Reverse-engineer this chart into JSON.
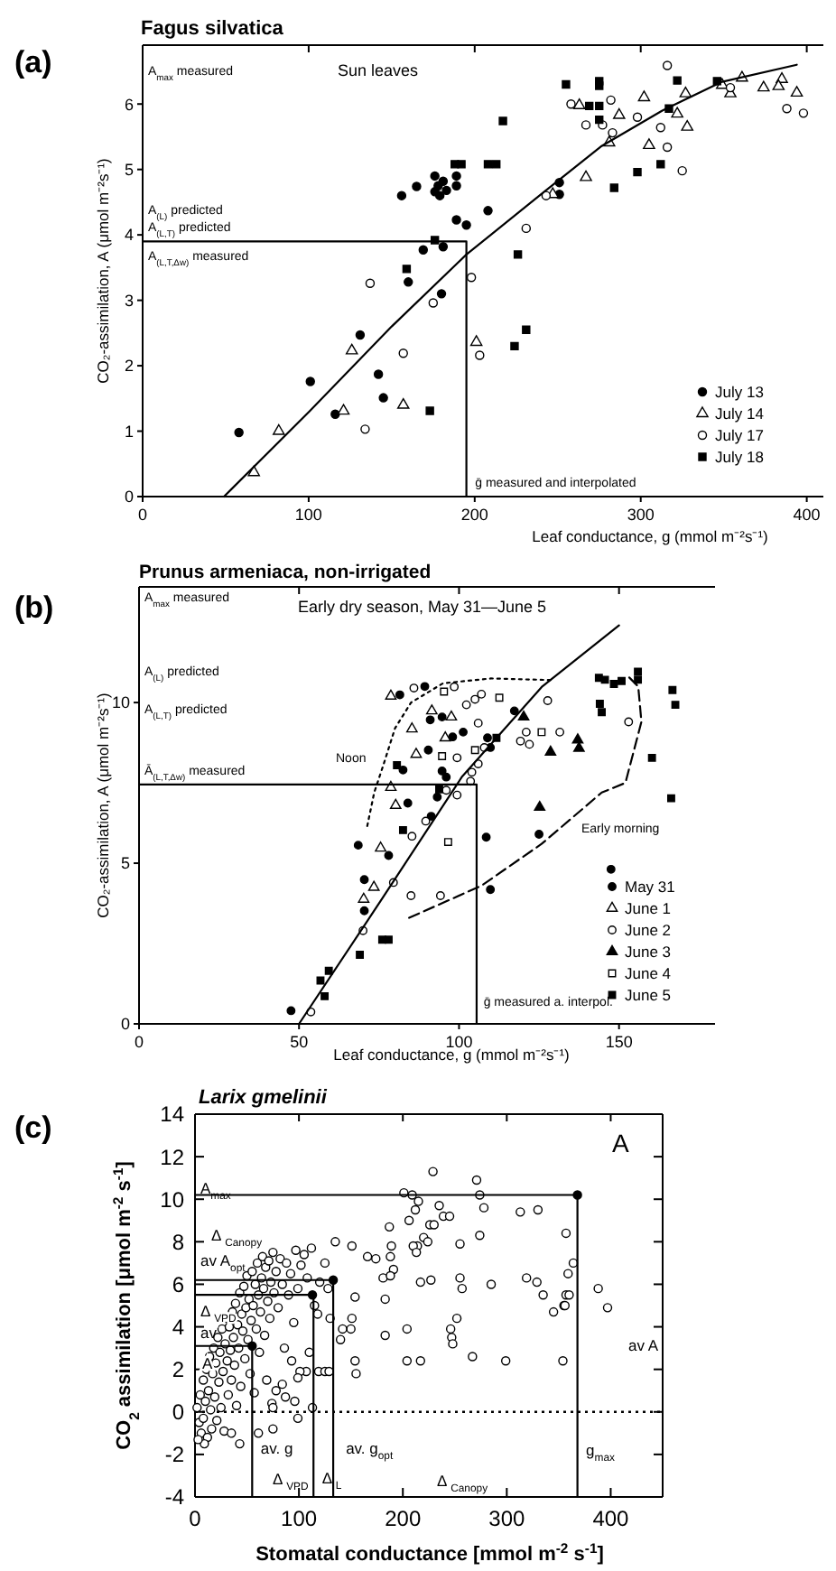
{
  "chart_data": [
    {
      "type": "scatter",
      "title": "Fagus silvatica",
      "xlabel": "Leaf conductance, g (mmol m⁻²s⁻¹)",
      "ylabel": "CO₂-assimilation, A (μmol m⁻²s⁻¹)",
      "xlim": [
        0,
        410
      ],
      "ylim": [
        0,
        6.9
      ],
      "xticks": [
        0,
        100,
        200,
        300,
        400
      ],
      "yticks": [
        0,
        1,
        2,
        3,
        4,
        5,
        6
      ],
      "legend": "bottom right",
      "annotations": [
        "(a)",
        "Sun leaves",
        "A$_{max}$ measured",
        "A$_{(L)}$ predicted",
        "A$_{(L,T)}$ predicted",
        "A$_{(L,T,Δw)}$ measured",
        {
          "text": "ḡ measured and interpolated",
          "x": 197,
          "y": 0.22
        }
      ],
      "series": [
        {
          "name": "July 13",
          "color": "#000000",
          "marker": "circle",
          "x": [
            156,
            165,
            176,
            178,
            181,
            176,
            179,
            183,
            189,
            189,
            189,
            195,
            208,
            251,
            181,
            169,
            58,
            101,
            116,
            131,
            142,
            145,
            160,
            180,
            251
          ],
          "values": [
            4.6,
            4.74,
            4.9,
            4.75,
            4.82,
            4.66,
            4.6,
            4.68,
            4.9,
            4.75,
            4.23,
            4.15,
            4.37,
            4.62,
            3.82,
            3.77,
            0.98,
            1.76,
            1.26,
            2.47,
            1.87,
            1.51,
            3.28,
            3.1,
            4.8
          ]
        },
        {
          "name": "July 14",
          "color": "#ffffff",
          "marker": "triangle",
          "x": [
            67,
            82,
            121,
            126,
            157,
            201,
            263,
            287,
            302,
            281,
            267,
            305,
            327,
            322,
            328,
            349,
            354,
            361,
            374,
            385,
            383,
            394,
            247
          ],
          "values": [
            0.37,
            1.0,
            1.31,
            2.23,
            1.4,
            2.36,
            5.98,
            5.83,
            6.1,
            5.41,
            4.88,
            5.37,
            6.16,
            5.85,
            5.65,
            6.29,
            6.16,
            6.4,
            6.25,
            6.38,
            6.27,
            6.17,
            4.62
          ]
        },
        {
          "name": "July 17",
          "color": "#ffffff",
          "marker": "circle",
          "x": [
            137,
            134,
            157,
            175,
            198,
            203,
            231,
            243,
            258,
            267,
            277,
            282,
            283,
            298,
            312,
            316,
            316,
            325,
            354,
            388,
            398
          ],
          "values": [
            3.26,
            1.03,
            2.19,
            2.96,
            3.35,
            2.16,
            4.1,
            4.6,
            6.0,
            5.68,
            5.68,
            6.06,
            5.56,
            5.8,
            5.64,
            5.34,
            6.59,
            4.98,
            6.25,
            5.93,
            5.86
          ]
        },
        {
          "name": "July 18",
          "color": "#000000",
          "marker": "square",
          "x": [
            188,
            192,
            208,
            213,
            217,
            255,
            275,
            275,
            269,
            275,
            275,
            284,
            298,
            312,
            322,
            317,
            346,
            176,
            159,
            173,
            224,
            231,
            226
          ],
          "values": [
            5.08,
            5.08,
            5.08,
            5.08,
            5.74,
            6.3,
            6.35,
            6.28,
            5.97,
            5.97,
            5.76,
            4.72,
            4.96,
            5.08,
            6.36,
            5.93,
            6.35,
            3.92,
            3.48,
            1.31,
            2.3,
            2.55,
            3.7
          ]
        },
        {
          "type": "line",
          "color": "#000000",
          "marker": "none",
          "line_style": "solid",
          "x": [
            49,
            100,
            150,
            195,
            240,
            276,
            313,
            349,
            394
          ],
          "values": [
            0,
            1.29,
            2.6,
            3.7,
            4.62,
            5.35,
            5.9,
            6.34,
            6.6
          ]
        },
        {
          "type": "line",
          "color": "#000000",
          "marker": "none",
          "line_style": "solid",
          "x": [
            0,
            195,
            195
          ],
          "values": [
            3.9,
            3.9,
            0
          ]
        }
      ]
    },
    {
      "type": "scatter",
      "title": "Prunus armeniaca, non-irrigated",
      "xlabel": "Leaf conductance, g (mmol m⁻²s⁻¹)",
      "ylabel": "CO₂-assimilation, A (μmol m⁻²s⁻¹)",
      "xlim": [
        0,
        180
      ],
      "ylim": [
        0,
        13.6
      ],
      "xticks": [
        0,
        50,
        100,
        150
      ],
      "yticks": [
        0,
        5,
        10
      ],
      "legend": "bottom right",
      "annotations": [
        "(b)",
        "Early dry season, May 31—June 5",
        "A$_{max}$ measured",
        "A$_{(L)}$ predicted",
        "A$_{(L,T)}$ predicted",
        "Ā$_{(L,T,Δw)}$ measured",
        "Noon",
        "Early morning",
        {
          "text": "ḡ measured a. interpol.",
          "x": 106,
          "y": 0.7
        }
      ],
      "series": [
        {
          "name": "May 31",
          "color": "#000000",
          "marker": "circle",
          "x": [
            47.5,
            68.5,
            70.4,
            70.4,
            78,
            84,
            91.3,
            93.2,
            108.5,
            109.8,
            125,
            147.5,
            81.5,
            89.3,
            94.7,
            117.3,
            91,
            98,
            101.3,
            108.9,
            90.4,
            109.8,
            82.5,
            94.7,
            96
          ],
          "values": [
            0.41,
            5.56,
            4.49,
            3.52,
            5.24,
            6.87,
            6.46,
            7.06,
            5.81,
            4.18,
            5.9,
            4.81,
            10.24,
            10.5,
            9.55,
            9.74,
            9.46,
            8.93,
            9.08,
            8.9,
            8.52,
            8.6,
            7.9,
            7.87,
            7.68
          ]
        },
        {
          "name": "June 1",
          "color": "#ffffff",
          "marker": "triangle",
          "x": [
            70.2,
            73.4,
            75.5,
            78.7,
            80.2,
            78.7,
            91.5,
            97.6,
            85.3,
            95.7,
            86.6
          ],
          "values": [
            3.88,
            4.25,
            5.47,
            7.36,
            6.8,
            10.2,
            9.74,
            9.55,
            9.18,
            8.9,
            8.39
          ]
        },
        {
          "name": "June 2",
          "color": "#ffffff",
          "marker": "circle",
          "x": [
            53.7,
            70,
            79.5,
            85.3,
            85,
            89.6,
            94.2,
            96,
            99.4,
            103.6,
            85.9,
            98.5,
            102.3,
            105,
            107,
            127.7,
            106,
            107.9,
            99.4,
            121,
            131.5,
            119.2,
            122,
            153,
            104,
            106
          ],
          "values": [
            0.37,
            2.9,
            4.4,
            5.84,
            3.99,
            6.31,
            3.99,
            7.27,
            7.12,
            7.55,
            10.45,
            10.49,
            9.93,
            10.1,
            10.26,
            10.06,
            9.36,
            8.6,
            8.28,
            9.08,
            9.08,
            8.8,
            8.7,
            9.4,
            7.83,
            8.09
          ]
        },
        {
          "name": "June 3",
          "color": "#000000",
          "marker": "triangle",
          "x": [
            125.2,
            128.6,
            137.1,
            137.5,
            120.2
          ],
          "values": [
            6.74,
            8.46,
            8.84,
            8.58,
            9.55
          ]
        },
        {
          "name": "June 4",
          "color": "#ffffff",
          "marker": "square",
          "x": [
            96.6,
            95.3,
            112.6,
            94.7,
            105,
            125.8
          ],
          "values": [
            5.66,
            10.34,
            10.15,
            8.33,
            8.52,
            9.08
          ]
        },
        {
          "name": "June 5",
          "color": "#000000",
          "marker": "square",
          "x": [
            56.7,
            58,
            59.3,
            69,
            76,
            78,
            82.5,
            93.8,
            166.3,
            111.7,
            143.7,
            145.6,
            148.4,
            150.8,
            155.9,
            155.9,
            144,
            144.6,
            166.7,
            167.6,
            160.3,
            80.6
          ],
          "values": [
            1.35,
            0.86,
            1.65,
            2.15,
            2.62,
            2.62,
            6.03,
            7.3,
            7.02,
            8.9,
            10.77,
            10.71,
            10.58,
            10.67,
            10.96,
            10.71,
            9.96,
            9.7,
            10.39,
            9.93,
            8.28,
            8.05
          ]
        },
        {
          "type": "line",
          "color": "#000000",
          "marker": "none",
          "line_style": "solid",
          "x": [
            50,
            76,
            101,
            126,
            150
          ],
          "values": [
            0,
            3.9,
            7.7,
            10.5,
            12.4
          ]
        },
        {
          "type": "line",
          "color": "#000000",
          "marker": "none",
          "line_style": "dotted",
          "x": [
            128.6,
            110,
            95,
            85,
            80,
            76.5,
            73.5,
            71.2
          ],
          "values": [
            10.7,
            10.75,
            10.6,
            10.0,
            9.2,
            8.1,
            7.2,
            6.1
          ]
        },
        {
          "type": "line",
          "color": "#000000",
          "marker": "none",
          "line_style": "dashed",
          "x": [
            84.4,
            107,
            125.8,
            144.6,
            152,
            157,
            156,
            153
          ],
          "values": [
            3.3,
            4.3,
            5.6,
            7.2,
            7.5,
            9.4,
            10.5,
            10.8
          ]
        },
        {
          "type": "line",
          "color": "#000000",
          "marker": "none",
          "line_style": "solid",
          "x": [
            0,
            105.5,
            105.5
          ],
          "values": [
            7.45,
            7.45,
            0
          ]
        }
      ]
    },
    {
      "type": "scatter",
      "title": "Larix gmelinii",
      "xlabel": "Stomatal conductance [mmol m$^{-2}$ s$^{-1}$]",
      "ylabel": "CO$_{2}$ assimilation [μmol m$^{-2}$ s$^{-1}$]",
      "xlim": [
        0,
        450
      ],
      "ylim": [
        -4,
        14
      ],
      "xticks": [
        0,
        100,
        200,
        300,
        400
      ],
      "yticks": [
        -4,
        -2,
        0,
        2,
        4,
        6,
        8,
        10,
        12,
        14
      ],
      "ref_lines": [
        {
          "axis": "y",
          "value": 0,
          "line_style": "dotted"
        }
      ],
      "annotations": [
        "(c)",
        "A",
        {
          "text": "A$_{max}$",
          "x": 0,
          "y": 10.5
        },
        "Δ $_{Canopy}$",
        "av A$_{opt}$",
        "Δ $_{VPD}$",
        "av",
        "A",
        {
          "text": "av. g",
          "x": 58,
          "y": -1.7
        },
        "Δ $_{VPD}$",
        {
          "text": "Δ $_{L}$",
          "x": 117,
          "y": -3.1
        },
        {
          "text": "av. g$_{opt}$",
          "x": 140,
          "y": -1.7
        },
        "Δ $_{Canopy}$",
        {
          "text": "g$_{max}$",
          "x": 371,
          "y": -1.8
        },
        "av A"
      ],
      "series": [
        {
          "color": "#ffffff",
          "marker": "circle",
          "x": [
            2,
            4,
            5,
            6,
            8,
            8,
            10,
            11,
            12,
            13,
            14,
            15,
            16,
            17,
            18,
            19,
            20,
            21,
            22,
            23,
            24,
            25,
            26,
            27,
            28,
            29,
            30,
            31,
            32,
            33,
            34,
            35,
            36,
            37,
            38,
            39,
            40,
            41,
            42,
            43,
            44,
            45,
            46,
            47,
            48,
            49,
            50,
            51,
            52,
            53,
            54,
            55,
            56,
            57,
            58,
            59,
            60,
            61,
            62,
            63,
            64,
            65,
            66,
            67,
            68,
            69,
            70,
            71,
            72,
            73,
            74,
            75,
            76,
            78,
            80,
            82,
            84,
            86,
            88,
            90,
            92,
            95,
            97,
            99,
            102,
            105,
            108,
            110,
            112,
            115,
            118,
            120,
            125,
            128,
            229,
            271,
            274,
            201,
            209,
            215,
            212,
            206,
            235,
            239,
            245,
            226,
            230,
            220,
            224,
            214,
            210,
            213,
            255,
            274,
            278,
            313,
            330,
            357,
            187,
            189,
            166,
            174,
            188,
            191,
            181,
            188,
            183,
            217,
            227,
            255,
            257,
            285,
            319,
            329,
            335,
            357,
            360,
            359,
            364,
            388,
            397,
            345,
            355,
            154,
            151,
            135,
            356,
            354,
            299,
            267,
            252,
            246,
            247,
            248,
            217,
            204,
            204,
            183,
            151,
            150,
            154,
            155,
            140,
            142,
            130,
            113,
            107,
            101,
            119,
            125,
            129,
            93,
            99,
            84,
            87,
            96,
            99,
            75,
            75,
            61,
            43,
            35,
            9,
            3,
            78
          ],
          "values": [
            0.2,
            -0.5,
            0.8,
            -1.0,
            1.5,
            -0.3,
            0.5,
            2.0,
            -1.2,
            1.0,
            2.6,
            0.1,
            -0.8,
            1.8,
            3.0,
            0.7,
            2.3,
            -0.4,
            3.5,
            1.4,
            2.8,
            0.2,
            3.9,
            1.9,
            -0.9,
            3.2,
            4.4,
            2.4,
            0.8,
            4.0,
            2.9,
            1.5,
            4.7,
            3.5,
            2.2,
            5.1,
            0.3,
            4.1,
            3.0,
            5.6,
            1.2,
            4.6,
            3.8,
            5.9,
            2.5,
            4.9,
            6.4,
            3.4,
            5.3,
            1.8,
            4.3,
            6.6,
            5.0,
            0.9,
            6.0,
            3.9,
            7.0,
            5.5,
            2.8,
            4.7,
            6.3,
            7.3,
            5.8,
            3.6,
            6.8,
            1.5,
            5.2,
            7.1,
            4.4,
            6.1,
            0.4,
            7.5,
            5.6,
            6.6,
            4.9,
            7.2,
            6.0,
            3.0,
            7.0,
            5.5,
            6.5,
            4.2,
            7.6,
            5.8,
            6.9,
            7.4,
            6.3,
            2.8,
            7.7,
            5.0,
            4.6,
            6.1,
            7.0,
            5.8,
            11.3,
            10.9,
            10.2,
            10.3,
            10.2,
            9.9,
            9.5,
            9.0,
            9.7,
            9.2,
            9.2,
            8.8,
            8.8,
            8.2,
            8.0,
            7.8,
            7.8,
            7.5,
            7.9,
            8.3,
            9.6,
            9.4,
            9.5,
            8.4,
            8.7,
            7.8,
            7.3,
            7.2,
            7.3,
            6.7,
            6.3,
            6.4,
            5.3,
            6.1,
            6.2,
            6.3,
            5.8,
            6.0,
            6.3,
            6.1,
            5.5,
            5.5,
            5.5,
            6.5,
            7.0,
            5.8,
            4.9,
            4.7,
            5.0,
            5.4,
            7.8,
            8.0,
            5.0,
            2.4,
            2.4,
            2.6,
            4.4,
            3.9,
            3.5,
            3.2,
            2.4,
            2.4,
            3.9,
            3.6,
            4.4,
            3.9,
            2.4,
            1.8,
            3.4,
            3.9,
            4.4,
            0.2,
            1.9,
            1.9,
            1.9,
            1.9,
            1.9,
            2.4,
            1.6,
            1.3,
            0.7,
            0.5,
            -0.3,
            0.2,
            -0.8,
            -1.0,
            -1.5,
            -1.0,
            -1.5,
            -1.3,
            1.0
          ]
        },
        {
          "type": "line",
          "color": "#000000",
          "marker": "none",
          "line_style": "solid",
          "x": [
            0,
            368,
            368
          ],
          "values": [
            10.2,
            10.2,
            -4
          ]
        },
        {
          "type": "line",
          "color": "#000000",
          "marker": "none",
          "line_style": "solid",
          "x": [
            0,
            133,
            133
          ],
          "values": [
            6.2,
            6.2,
            -4
          ]
        },
        {
          "type": "line",
          "color": "#000000",
          "marker": "none",
          "line_style": "solid",
          "x": [
            0,
            114,
            114
          ],
          "values": [
            5.5,
            5.5,
            -4
          ]
        },
        {
          "type": "line",
          "color": "#000000",
          "marker": "none",
          "line_style": "solid",
          "x": [
            0,
            55,
            55
          ],
          "values": [
            3.1,
            3.1,
            -4
          ]
        },
        {
          "color": "#000000",
          "marker": "circle",
          "x": [
            55,
            113,
            133,
            368
          ],
          "values": [
            3.1,
            5.5,
            6.2,
            10.2
          ]
        }
      ]
    }
  ]
}
